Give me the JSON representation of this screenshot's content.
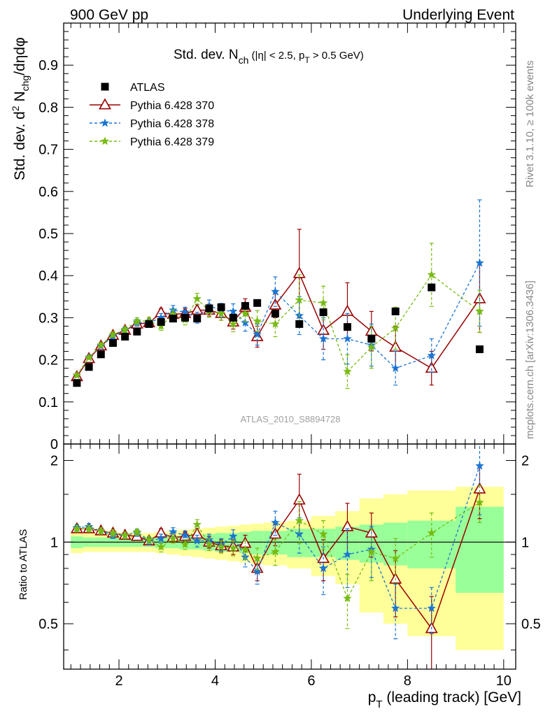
{
  "header": {
    "left": "900 GeV pp",
    "right": "Underlying Event"
  },
  "side_labels": {
    "rivet": "Rivet 3.1.10, ≥ 100k events",
    "mcplots": "mcplots.cern.ch [arXiv:1306.3436]"
  },
  "colors": {
    "atlas": "#000000",
    "p370": "#990000",
    "p378": "#1a75d4",
    "p379": "#77bb11",
    "band_yellow": "#ffff99",
    "band_green": "#99ff99"
  },
  "chart_data": [
    {
      "type": "scatter",
      "title": "Std. dev. N_ch (|η| < 2.5, p_T > 0.5 GeV)",
      "title_parts": {
        "main": "Std. dev. N",
        "sub": "ch",
        "rest_a": " (|η| < 2.5, p",
        "sub2": "T",
        "rest_b": " > 0.5 GeV)"
      },
      "ylabel": "Std. dev. d² N_chg/dηdφ",
      "ylabel_parts": {
        "a": "Std. dev. d",
        "sup": "2",
        "b": " N",
        "sub": "chg",
        "c": "/dηdφ"
      },
      "watermark": "ATLAS_2010_S8894728",
      "xlim": [
        0.85,
        10.25
      ],
      "ylim": [
        0,
        1.0
      ],
      "x_ticks": [
        2,
        4,
        6,
        8,
        10
      ],
      "y_ticks": [
        0,
        0.1,
        0.2,
        0.3,
        0.4,
        0.5,
        0.6,
        0.7,
        0.8,
        0.9
      ],
      "y_tick_labels": [
        "0",
        "0.1",
        "0.2",
        "0.3",
        "0.4",
        "0.5",
        "0.6",
        "0.7",
        "0.8",
        "0.9"
      ],
      "legend_position": "top-left",
      "x": [
        1.125,
        1.375,
        1.625,
        1.875,
        2.125,
        2.375,
        2.625,
        2.875,
        3.125,
        3.375,
        3.625,
        3.875,
        4.125,
        4.375,
        4.625,
        4.875,
        5.25,
        5.75,
        6.25,
        6.75,
        7.25,
        7.75,
        8.5,
        9.5
      ],
      "series": [
        {
          "name": "ATLAS",
          "marker": "square",
          "values": [
            0.145,
            0.183,
            0.213,
            0.24,
            0.255,
            0.267,
            0.285,
            0.29,
            0.298,
            0.3,
            0.298,
            0.322,
            0.325,
            0.3,
            0.328,
            0.335,
            0.31,
            0.285,
            0.313,
            0.278,
            0.25,
            0.315,
            0.372,
            0.225
          ]
        },
        {
          "name": "Pythia 6.428 370",
          "marker": "triangle",
          "values": [
            0.16,
            0.203,
            0.233,
            0.258,
            0.27,
            0.285,
            0.288,
            0.312,
            0.308,
            0.31,
            0.318,
            0.318,
            0.31,
            0.29,
            0.325,
            0.255,
            0.33,
            0.405,
            0.27,
            0.315,
            0.268,
            0.23,
            0.18,
            0.345
          ],
          "errors": [
            0.004,
            0.004,
            0.005,
            0.006,
            0.007,
            0.008,
            0.008,
            0.01,
            0.011,
            0.012,
            0.013,
            0.014,
            0.016,
            0.017,
            0.02,
            0.025,
            0.03,
            0.105,
            0.045,
            0.068,
            0.047,
            0.05,
            0.04,
            0.08
          ]
        },
        {
          "name": "Pythia 6.428 378",
          "marker": "star",
          "values": [
            0.163,
            0.206,
            0.233,
            0.255,
            0.27,
            0.288,
            0.288,
            0.3,
            0.318,
            0.313,
            0.3,
            0.328,
            0.318,
            0.315,
            0.288,
            0.26,
            0.362,
            0.305,
            0.25,
            0.25,
            0.235,
            0.18,
            0.21,
            0.43
          ],
          "errors": [
            0.004,
            0.004,
            0.005,
            0.006,
            0.007,
            0.008,
            0.009,
            0.01,
            0.011,
            0.012,
            0.013,
            0.014,
            0.016,
            0.018,
            0.02,
            0.025,
            0.035,
            0.045,
            0.05,
            0.06,
            0.05,
            0.04,
            0.04,
            0.15
          ]
        },
        {
          "name": "Pythia 6.428 379",
          "marker": "star",
          "values": [
            0.163,
            0.205,
            0.235,
            0.26,
            0.272,
            0.292,
            0.292,
            0.28,
            0.308,
            0.295,
            0.345,
            0.315,
            0.31,
            0.285,
            0.31,
            0.292,
            0.285,
            0.342,
            0.335,
            0.172,
            0.23,
            0.275,
            0.402,
            0.315
          ],
          "errors": [
            0.004,
            0.004,
            0.005,
            0.006,
            0.007,
            0.008,
            0.009,
            0.01,
            0.011,
            0.012,
            0.013,
            0.014,
            0.016,
            0.018,
            0.02,
            0.025,
            0.03,
            0.06,
            0.04,
            0.04,
            0.05,
            0.05,
            0.075,
            0.05
          ]
        }
      ]
    },
    {
      "type": "scatter",
      "ylabel": "Ratio to ATLAS",
      "xlabel": "p_T (leading track) [GeV]",
      "xlabel_parts": {
        "a": "p",
        "sub": "T",
        "b": " (leading track) [GeV]"
      },
      "xlim": [
        0.85,
        10.25
      ],
      "ylim": [
        0.34,
        2.3
      ],
      "x_ticks": [
        2,
        4,
        6,
        8,
        10
      ],
      "x_tick_labels": [
        "2",
        "4",
        "6",
        "8",
        "10"
      ],
      "y_ticks": [
        0.5,
        1,
        2
      ],
      "y_tick_labels": [
        "0.5",
        "1",
        "2"
      ],
      "bins": [
        [
          1.0,
          1.25
        ],
        [
          1.25,
          1.5
        ],
        [
          1.5,
          1.75
        ],
        [
          1.75,
          2.0
        ],
        [
          2.0,
          2.25
        ],
        [
          2.25,
          2.5
        ],
        [
          2.5,
          2.75
        ],
        [
          2.75,
          3.0
        ],
        [
          3.0,
          3.25
        ],
        [
          3.25,
          3.5
        ],
        [
          3.5,
          3.75
        ],
        [
          3.75,
          4.0
        ],
        [
          4.0,
          4.25
        ],
        [
          4.25,
          4.5
        ],
        [
          4.5,
          4.75
        ],
        [
          4.75,
          5.0
        ],
        [
          5.0,
          5.5
        ],
        [
          5.5,
          6.0
        ],
        [
          6.0,
          6.5
        ],
        [
          6.5,
          7.0
        ],
        [
          7.0,
          7.5
        ],
        [
          7.5,
          8.0
        ],
        [
          8.0,
          9.0
        ],
        [
          9.0,
          10.0
        ]
      ],
      "band_total": [
        0.09,
        0.08,
        0.08,
        0.08,
        0.08,
        0.08,
        0.08,
        0.09,
        0.1,
        0.11,
        0.12,
        0.13,
        0.14,
        0.15,
        0.16,
        0.17,
        0.18,
        0.2,
        0.25,
        0.3,
        0.45,
        0.5,
        0.55,
        0.6
      ],
      "band_stat": [
        0.05,
        0.04,
        0.04,
        0.04,
        0.04,
        0.04,
        0.04,
        0.05,
        0.05,
        0.06,
        0.06,
        0.07,
        0.08,
        0.08,
        0.09,
        0.1,
        0.1,
        0.12,
        0.12,
        0.14,
        0.16,
        0.18,
        0.2,
        0.35
      ],
      "series": [
        {
          "name": "Pythia 6.428 370",
          "values": [
            1.12,
            1.12,
            1.1,
            1.08,
            1.06,
            1.05,
            1.01,
            1.08,
            1.04,
            1.05,
            1.07,
            1.0,
            0.97,
            0.96,
            0.99,
            0.8,
            1.07,
            1.43,
            0.87,
            1.14,
            1.08,
            0.73,
            0.48,
            1.57
          ],
          "errors": [
            0.03,
            0.03,
            0.03,
            0.03,
            0.03,
            0.03,
            0.03,
            0.04,
            0.04,
            0.04,
            0.05,
            0.05,
            0.05,
            0.06,
            0.07,
            0.08,
            0.1,
            0.35,
            0.15,
            0.25,
            0.2,
            0.2,
            0.15,
            0.35
          ]
        },
        {
          "name": "Pythia 6.428 378",
          "values": [
            1.13,
            1.14,
            1.1,
            1.06,
            1.06,
            1.08,
            1.01,
            1.03,
            1.09,
            1.06,
            1.01,
            1.02,
            0.98,
            1.05,
            0.88,
            0.78,
            1.18,
            1.07,
            0.8,
            0.9,
            0.94,
            0.57,
            0.57,
            1.91
          ],
          "errors": [
            0.03,
            0.03,
            0.03,
            0.03,
            0.03,
            0.03,
            0.03,
            0.04,
            0.04,
            0.04,
            0.05,
            0.05,
            0.05,
            0.06,
            0.07,
            0.08,
            0.12,
            0.16,
            0.16,
            0.22,
            0.2,
            0.13,
            0.11,
            0.65
          ]
        },
        {
          "name": "Pythia 6.428 379",
          "values": [
            1.12,
            1.12,
            1.1,
            1.08,
            1.06,
            1.09,
            1.02,
            0.96,
            1.03,
            0.98,
            1.16,
            0.98,
            0.96,
            0.95,
            0.94,
            0.87,
            0.92,
            1.2,
            1.07,
            0.62,
            0.92,
            0.87,
            1.08,
            1.4
          ],
          "errors": [
            0.03,
            0.03,
            0.03,
            0.03,
            0.03,
            0.03,
            0.03,
            0.04,
            0.04,
            0.04,
            0.05,
            0.05,
            0.05,
            0.06,
            0.07,
            0.08,
            0.1,
            0.21,
            0.13,
            0.14,
            0.2,
            0.16,
            0.2,
            0.22
          ]
        }
      ]
    }
  ]
}
